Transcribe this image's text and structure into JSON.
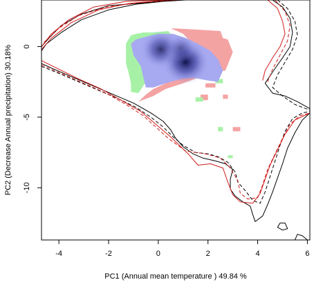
{
  "chart_data": {
    "type": "scatter",
    "title": "",
    "xlabel": "PC1 (Annual mean temperature ) 49.84 %",
    "ylabel": "PC2 (Decrease Annual precipitation) 30.18%",
    "xlim": [
      -4.7,
      6.1
    ],
    "ylim": [
      -13.7,
      3.3
    ],
    "x_ticks": [
      -4,
      -2,
      0,
      2,
      4,
      6
    ],
    "y_ticks": [
      0,
      -5,
      -10
    ],
    "grid": false,
    "legend": "none",
    "colors": {
      "native_only": "#f4a3a3",
      "invaded_only": "#a7f1a7",
      "overlap": "#a7a9f1",
      "density_core": "#0a0a45",
      "native_envelope": "#000000",
      "invaded_envelope": "#d11a1a"
    },
    "regions": [
      {
        "kind": "native_only",
        "points": [
          [
            0.5,
            1.3
          ],
          [
            1.6,
            1.2
          ],
          [
            2.5,
            1.1
          ],
          [
            2.6,
            0.6
          ],
          [
            2.8,
            0.5
          ],
          [
            3.0,
            -0.4
          ],
          [
            2.7,
            -1.7
          ],
          [
            2.1,
            -1.8
          ],
          [
            1.4,
            -1.7
          ],
          [
            0.8,
            -2.1
          ],
          [
            0.3,
            -2.6
          ],
          [
            -0.2,
            -3.0
          ],
          [
            -0.5,
            -3.4
          ],
          [
            -0.8,
            -3.9
          ],
          [
            -0.2,
            -3.5
          ],
          [
            0.3,
            -3.0
          ],
          [
            1.0,
            -2.6
          ],
          [
            1.6,
            -2.2
          ],
          [
            2.2,
            -2.0
          ],
          [
            2.4,
            -1.5
          ],
          [
            2.1,
            -0.5
          ],
          [
            1.6,
            -0.2
          ],
          [
            1.0,
            0.9
          ],
          [
            0.5,
            1.3
          ]
        ]
      },
      {
        "kind": "native_only",
        "points": [
          [
            1.7,
            -3.4
          ],
          [
            2.0,
            -3.4
          ],
          [
            2.0,
            -3.8
          ],
          [
            1.7,
            -3.8
          ]
        ]
      },
      {
        "kind": "native_only",
        "points": [
          [
            1.9,
            -2.6
          ],
          [
            2.3,
            -2.6
          ],
          [
            2.3,
            -2.9
          ],
          [
            1.9,
            -2.9
          ]
        ]
      },
      {
        "kind": "native_only",
        "points": [
          [
            2.6,
            -3.4
          ],
          [
            2.8,
            -3.4
          ],
          [
            2.8,
            -3.7
          ],
          [
            2.6,
            -3.7
          ]
        ]
      },
      {
        "kind": "native_only",
        "points": [
          [
            3.0,
            -5.7
          ],
          [
            3.3,
            -5.7
          ],
          [
            3.3,
            -6.0
          ],
          [
            3.0,
            -6.0
          ]
        ]
      },
      {
        "kind": "invaded_only",
        "points": [
          [
            -1.1,
            0.8
          ],
          [
            -0.9,
            0.9
          ],
          [
            -0.6,
            1.0
          ],
          [
            -0.2,
            1.0
          ],
          [
            0.4,
            1.1
          ],
          [
            0.6,
            0.7
          ],
          [
            0.3,
            0.3
          ],
          [
            -0.2,
            -0.6
          ],
          [
            -0.3,
            -1.5
          ],
          [
            -0.5,
            -2.5
          ],
          [
            -0.8,
            -3.3
          ],
          [
            -1.1,
            -3.2
          ],
          [
            -1.1,
            -2.6
          ],
          [
            -1.2,
            -1.8
          ],
          [
            -1.3,
            -1.2
          ],
          [
            -1.3,
            0.2
          ],
          [
            -1.1,
            0.8
          ]
        ]
      },
      {
        "kind": "invaded_only",
        "points": [
          [
            2.3,
            -2.3
          ],
          [
            2.6,
            -2.3
          ],
          [
            2.6,
            -2.6
          ],
          [
            2.3,
            -2.6
          ]
        ]
      },
      {
        "kind": "invaded_only",
        "points": [
          [
            1.5,
            -3.6
          ],
          [
            1.8,
            -3.6
          ],
          [
            1.8,
            -3.9
          ],
          [
            1.5,
            -3.9
          ]
        ]
      },
      {
        "kind": "invaded_only",
        "points": [
          [
            2.4,
            -5.7
          ],
          [
            2.6,
            -5.7
          ],
          [
            2.6,
            -6.0
          ],
          [
            2.4,
            -6.0
          ]
        ]
      },
      {
        "kind": "invaded_only",
        "points": [
          [
            2.8,
            -7.7
          ],
          [
            3.0,
            -7.7
          ],
          [
            3.0,
            -7.9
          ],
          [
            2.8,
            -7.9
          ]
        ]
      },
      {
        "kind": "overlap",
        "points": [
          [
            -1.1,
            0.2
          ],
          [
            -0.9,
            0.5
          ],
          [
            -0.5,
            0.7
          ],
          [
            0.0,
            0.9
          ],
          [
            0.6,
            0.9
          ],
          [
            1.1,
            0.6
          ],
          [
            1.6,
            0.2
          ],
          [
            2.1,
            -0.3
          ],
          [
            2.4,
            -0.9
          ],
          [
            2.6,
            -1.7
          ],
          [
            2.4,
            -2.5
          ],
          [
            2.0,
            -2.4
          ],
          [
            1.4,
            -2.2
          ],
          [
            0.9,
            -2.3
          ],
          [
            0.3,
            -2.6
          ],
          [
            -0.2,
            -2.9
          ],
          [
            -0.5,
            -2.9
          ],
          [
            -0.6,
            -2.2
          ],
          [
            -0.7,
            -1.4
          ],
          [
            -1.0,
            -0.6
          ],
          [
            -1.1,
            0.2
          ]
        ]
      }
    ],
    "density_peaks": [
      {
        "x": 0.1,
        "y": -0.2,
        "strength": 0.78
      },
      {
        "x": 1.1,
        "y": -1.1,
        "strength": 1.0
      },
      {
        "x": 0.9,
        "y": -0.1,
        "strength": 0.45
      }
    ],
    "envelopes": [
      {
        "color": "native_envelope",
        "dashed": false,
        "points": [
          [
            -4.7,
            0.0
          ],
          [
            -4.4,
            0.6
          ],
          [
            -3.9,
            1.5
          ],
          [
            -3.1,
            2.3
          ],
          [
            -2.0,
            2.9
          ],
          [
            -0.6,
            3.1
          ],
          [
            0.5,
            3.3
          ],
          [
            1.1,
            3.3
          ],
          [
            0.2,
            3.2
          ],
          [
            -0.9,
            3.0
          ],
          [
            -2.0,
            2.6
          ],
          [
            -3.1,
            1.9
          ],
          [
            -3.9,
            1.0
          ],
          [
            -4.5,
            0.2
          ],
          [
            -4.7,
            -0.3
          ]
        ]
      },
      {
        "color": "invaded_envelope",
        "dashed": false,
        "points": [
          [
            -4.7,
            0.0
          ],
          [
            -4.3,
            0.9
          ],
          [
            -3.6,
            1.9
          ],
          [
            -2.6,
            2.8
          ],
          [
            -1.3,
            3.2
          ],
          [
            0.1,
            3.3
          ],
          [
            0.9,
            3.3
          ],
          [
            0.0,
            3.25
          ],
          [
            -1.2,
            3.05
          ],
          [
            -2.4,
            2.6
          ],
          [
            -3.5,
            1.7
          ],
          [
            -4.3,
            0.6
          ],
          [
            -4.7,
            -0.2
          ]
        ]
      },
      {
        "color": "invaded_envelope",
        "dashed": true,
        "points": [
          [
            -4.6,
            0.3
          ],
          [
            -4.0,
            1.3
          ],
          [
            -3.2,
            2.2
          ],
          [
            -2.1,
            2.8
          ],
          [
            -0.8,
            3.1
          ],
          [
            0.6,
            3.3
          ]
        ]
      },
      {
        "color": "native_envelope",
        "dashed": false,
        "points": [
          [
            4.6,
            3.3
          ],
          [
            5.0,
            2.8
          ],
          [
            5.3,
            2.0
          ],
          [
            5.4,
            1.0
          ],
          [
            5.3,
            0.0
          ],
          [
            5.0,
            -0.8
          ],
          [
            4.6,
            -1.8
          ],
          [
            4.3,
            -2.6
          ],
          [
            4.6,
            -3.3
          ],
          [
            5.1,
            -3.5
          ],
          [
            5.6,
            -3.9
          ],
          [
            6.1,
            -4.4
          ]
        ]
      },
      {
        "color": "native_envelope",
        "dashed": true,
        "points": [
          [
            4.8,
            3.3
          ],
          [
            5.2,
            2.7
          ],
          [
            5.5,
            1.8
          ],
          [
            5.6,
            0.8
          ],
          [
            5.4,
            -0.2
          ],
          [
            5.1,
            -1.1
          ],
          [
            4.8,
            -2.0
          ],
          [
            4.6,
            -2.9
          ],
          [
            5.0,
            -3.5
          ],
          [
            5.5,
            -4.1
          ],
          [
            6.1,
            -4.5
          ]
        ]
      },
      {
        "color": "invaded_envelope",
        "dashed": false,
        "points": [
          [
            4.4,
            3.3
          ],
          [
            4.8,
            2.7
          ],
          [
            5.0,
            1.8
          ],
          [
            5.1,
            0.9
          ],
          [
            4.9,
            0.0
          ],
          [
            4.6,
            -0.8
          ],
          [
            4.3,
            -1.7
          ],
          [
            4.2,
            -2.4
          ]
        ]
      },
      {
        "color": "invaded_envelope",
        "dashed": true,
        "points": [
          [
            4.7,
            3.3
          ],
          [
            5.1,
            2.5
          ],
          [
            5.3,
            1.5
          ],
          [
            5.2,
            0.4
          ],
          [
            4.9,
            -0.6
          ],
          [
            4.6,
            -1.6
          ],
          [
            4.4,
            -2.5
          ]
        ]
      },
      {
        "color": "native_envelope",
        "dashed": false,
        "points": [
          [
            -4.7,
            -1.2
          ],
          [
            -4.2,
            -1.6
          ],
          [
            -3.4,
            -2.2
          ],
          [
            -2.6,
            -2.8
          ],
          [
            -1.8,
            -3.4
          ],
          [
            -1.0,
            -4.0
          ],
          [
            -0.3,
            -4.7
          ],
          [
            0.2,
            -5.3
          ],
          [
            0.5,
            -5.9
          ],
          [
            0.7,
            -6.5
          ],
          [
            1.0,
            -7.1
          ],
          [
            1.4,
            -7.6
          ],
          [
            1.8,
            -7.9
          ],
          [
            2.3,
            -8.1
          ],
          [
            2.7,
            -8.3
          ],
          [
            3.0,
            -8.7
          ],
          [
            2.9,
            -9.4
          ],
          [
            2.9,
            -10.1
          ],
          [
            3.1,
            -10.6
          ],
          [
            3.4,
            -11.0
          ],
          [
            3.7,
            -11.3
          ],
          [
            3.8,
            -11.9
          ],
          [
            3.9,
            -12.4
          ],
          [
            4.2,
            -12.0
          ],
          [
            4.4,
            -11.2
          ],
          [
            4.6,
            -10.3
          ],
          [
            4.8,
            -9.3
          ],
          [
            5.0,
            -8.3
          ],
          [
            5.2,
            -7.2
          ],
          [
            5.5,
            -6.1
          ],
          [
            5.8,
            -5.2
          ],
          [
            6.1,
            -4.7
          ]
        ]
      },
      {
        "color": "native_envelope",
        "dashed": true,
        "points": [
          [
            -4.7,
            -1.4
          ],
          [
            -4.0,
            -1.9
          ],
          [
            -3.2,
            -2.5
          ],
          [
            -2.4,
            -3.1
          ],
          [
            -1.6,
            -3.7
          ],
          [
            -0.9,
            -4.3
          ],
          [
            -0.3,
            -5.0
          ],
          [
            0.2,
            -5.7
          ],
          [
            0.6,
            -6.4
          ],
          [
            1.0,
            -7.0
          ],
          [
            1.5,
            -7.5
          ],
          [
            2.0,
            -7.6
          ],
          [
            2.4,
            -7.8
          ],
          [
            2.8,
            -8.2
          ],
          [
            3.1,
            -8.9
          ],
          [
            3.2,
            -9.6
          ],
          [
            3.5,
            -10.2
          ],
          [
            3.8,
            -10.9
          ],
          [
            4.1,
            -11.1
          ],
          [
            4.3,
            -10.3
          ],
          [
            4.5,
            -9.2
          ],
          [
            4.7,
            -8.1
          ],
          [
            4.9,
            -7.0
          ],
          [
            5.1,
            -6.0
          ],
          [
            5.4,
            -5.1
          ],
          [
            5.8,
            -4.7
          ],
          [
            6.1,
            -4.6
          ]
        ]
      },
      {
        "color": "invaded_envelope",
        "dashed": false,
        "points": [
          [
            -4.7,
            -1.0
          ],
          [
            -4.0,
            -1.6
          ],
          [
            -3.2,
            -2.3
          ],
          [
            -2.3,
            -3.0
          ],
          [
            -1.5,
            -3.8
          ],
          [
            -0.7,
            -4.6
          ],
          [
            -0.1,
            -5.5
          ],
          [
            0.5,
            -6.4
          ],
          [
            1.2,
            -7.6
          ],
          [
            1.6,
            -8.4
          ],
          [
            2.1,
            -8.3
          ],
          [
            2.6,
            -8.6
          ],
          [
            2.8,
            -9.6
          ],
          [
            3.0,
            -10.5
          ],
          [
            3.3,
            -11.0
          ],
          [
            3.8,
            -11.1
          ],
          [
            4.1,
            -10.4
          ],
          [
            4.3,
            -9.4
          ],
          [
            4.5,
            -8.4
          ],
          [
            4.8,
            -7.3
          ],
          [
            5.1,
            -6.2
          ],
          [
            5.5,
            -5.2
          ],
          [
            6.1,
            -4.7
          ]
        ]
      },
      {
        "color": "invaded_envelope",
        "dashed": true,
        "points": [
          [
            -4.7,
            -1.3
          ],
          [
            -3.9,
            -1.9
          ],
          [
            -3.0,
            -2.6
          ],
          [
            -2.1,
            -3.3
          ],
          [
            -1.3,
            -4.1
          ],
          [
            -0.6,
            -4.9
          ],
          [
            -0.1,
            -5.7
          ],
          [
            0.4,
            -6.5
          ],
          [
            1.1,
            -7.4
          ],
          [
            1.9,
            -7.6
          ],
          [
            2.5,
            -7.9
          ],
          [
            2.9,
            -8.6
          ],
          [
            3.2,
            -9.5
          ],
          [
            3.3,
            -10.4
          ],
          [
            3.6,
            -10.8
          ],
          [
            4.0,
            -10.7
          ],
          [
            4.2,
            -9.8
          ],
          [
            4.4,
            -8.7
          ],
          [
            4.7,
            -7.6
          ],
          [
            5.0,
            -6.5
          ],
          [
            5.3,
            -5.5
          ],
          [
            5.7,
            -4.9
          ],
          [
            6.1,
            -4.7
          ]
        ]
      },
      {
        "color": "native_envelope",
        "dashed": false,
        "points": [
          [
            4.9,
            -12.5
          ],
          [
            5.1,
            -12.5
          ],
          [
            5.2,
            -12.9
          ],
          [
            5.0,
            -13.0
          ],
          [
            4.8,
            -12.8
          ],
          [
            4.9,
            -12.5
          ]
        ]
      },
      {
        "color": "native_envelope",
        "dashed": false,
        "points": [
          [
            5.5,
            -13.7
          ],
          [
            5.6,
            -13.3
          ],
          [
            5.8,
            -13.4
          ],
          [
            6.0,
            -13.7
          ]
        ]
      }
    ]
  }
}
